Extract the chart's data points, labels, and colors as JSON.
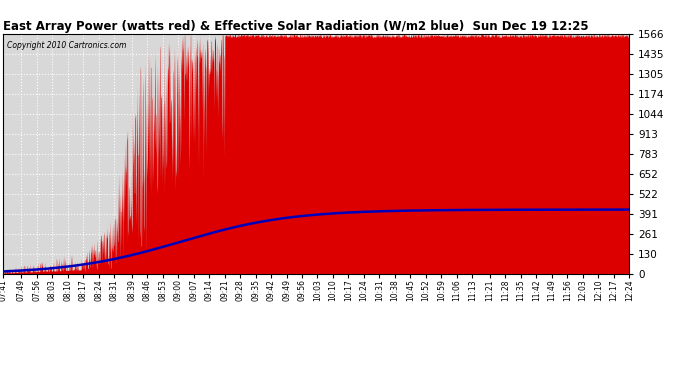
{
  "title": "East Array Power (watts red) & Effective Solar Radiation (W/m2 blue)  Sun Dec 19 12:25",
  "copyright": "Copyright 2010 Cartronics.com",
  "background_color": "#ffffff",
  "plot_bg_color": "#d8d8d8",
  "grid_color": "#ffffff",
  "ymin": 0.0,
  "ymax": 1565.7,
  "yticks": [
    0.0,
    130.5,
    261.0,
    391.4,
    521.9,
    652.4,
    782.9,
    913.3,
    1043.8,
    1174.3,
    1304.8,
    1435.2,
    1565.7
  ],
  "red_color": "#dd0000",
  "blue_color": "#0000bb",
  "x_labels": [
    "07:41",
    "07:49",
    "07:56",
    "08:03",
    "08:10",
    "08:17",
    "08:24",
    "08:31",
    "08:39",
    "08:46",
    "08:53",
    "09:00",
    "09:07",
    "09:14",
    "09:21",
    "09:28",
    "09:35",
    "09:42",
    "09:49",
    "09:56",
    "10:03",
    "10:10",
    "10:17",
    "10:24",
    "10:31",
    "10:38",
    "10:45",
    "10:52",
    "10:59",
    "11:06",
    "11:13",
    "11:21",
    "11:28",
    "11:35",
    "11:42",
    "11:49",
    "11:56",
    "12:03",
    "12:10",
    "12:17",
    "12:24"
  ]
}
